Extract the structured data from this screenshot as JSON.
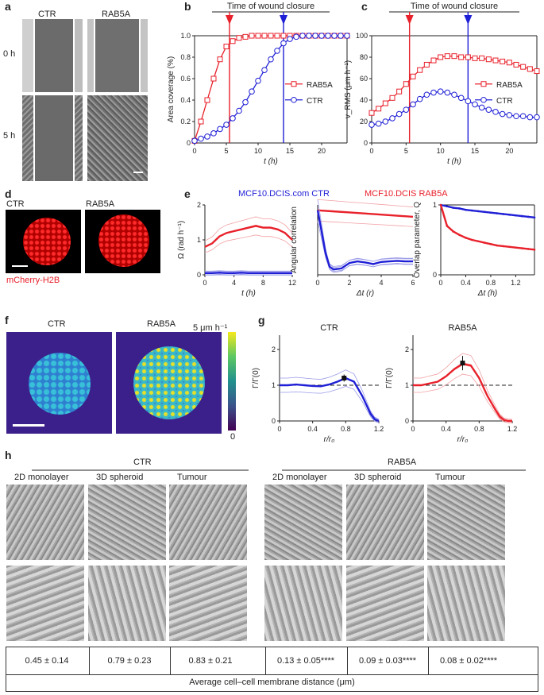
{
  "panel_letters": {
    "a": "a",
    "b": "b",
    "c": "c",
    "d": "d",
    "e": "e",
    "f": "f",
    "g": "g",
    "h": "h"
  },
  "panel_a": {
    "col1": "CTR",
    "col2": "RAB5A",
    "row1": "0 h",
    "row2": "5 h"
  },
  "panel_d": {
    "col1": "CTR",
    "col2": "RAB5A",
    "caption": "mCherry-H2B"
  },
  "panel_e": {
    "legend_ctr": "MCF10.DCIS.com CTR",
    "legend_rab5a": "MCF10.DCIS RAB5A"
  },
  "panel_f": {
    "col1": "CTR",
    "col2": "RAB5A",
    "scale_top": "5 μm h⁻¹",
    "scale_bottom": "0"
  },
  "panel_h": {
    "group1": "CTR",
    "group2": "RAB5A",
    "subtitles": [
      "2D monolayer",
      "3D spheroid",
      "Tumour",
      "2D monolayer",
      "3D spheroid",
      "Tumour"
    ],
    "values": [
      "0.45 ± 0.14",
      "0.79 ± 0.23",
      "0.83 ± 0.21",
      "0.13 ± 0.05****",
      "0.09 ± 0.03****",
      "0.08 ± 0.02****"
    ],
    "footer": "Average cell–cell membrane distance (μm)"
  },
  "colors": {
    "ctr": "#1f1fd6",
    "rab5a": "#e8212b",
    "ctr_light": "#9a9ae8",
    "rab5a_light": "#f2a0a4"
  },
  "chart_data": [
    {
      "id": "b",
      "type": "line",
      "title": "",
      "annotation": "Time of wound closure",
      "xlabel": "t (h)",
      "ylabel": "Area coverage (%)",
      "xlim": [
        0,
        24
      ],
      "ylim": [
        0,
        1
      ],
      "xticks": [
        0,
        5,
        10,
        15,
        20
      ],
      "yticks": [
        0,
        0.2,
        0.4,
        0.6,
        0.8,
        1.0
      ],
      "xtick_labels": [
        "0",
        "5",
        "10",
        "15",
        "20"
      ],
      "ytick_labels": [
        "0",
        "0.2",
        "0.4",
        "0.6",
        "0.8",
        "1.0"
      ],
      "vlines": [
        {
          "x": 5.5,
          "color": "rab5a"
        },
        {
          "x": 14,
          "color": "ctr"
        }
      ],
      "legend": "right",
      "series": [
        {
          "name": "RAB5A",
          "marker": "square",
          "color": "rab5a",
          "x": [
            0,
            1,
            2,
            3,
            4,
            5,
            6,
            7,
            8,
            9,
            10,
            11,
            12,
            13,
            14,
            15,
            16,
            17,
            18,
            19,
            20,
            21,
            22,
            23,
            24
          ],
          "y": [
            0.02,
            0.2,
            0.4,
            0.6,
            0.78,
            0.9,
            0.95,
            0.98,
            0.99,
            1,
            1,
            1,
            1,
            1,
            1,
            1,
            1,
            1,
            1,
            1,
            1,
            1,
            1,
            1,
            1
          ]
        },
        {
          "name": "CTR",
          "marker": "circle",
          "color": "ctr",
          "x": [
            0,
            1,
            2,
            3,
            4,
            5,
            6,
            7,
            8,
            9,
            10,
            11,
            12,
            13,
            14,
            15,
            16,
            17,
            18,
            19,
            20,
            21,
            22,
            23,
            24
          ],
          "y": [
            0.02,
            0.04,
            0.06,
            0.09,
            0.13,
            0.17,
            0.23,
            0.3,
            0.38,
            0.48,
            0.58,
            0.68,
            0.78,
            0.86,
            0.93,
            0.97,
            0.99,
            1,
            1,
            1,
            1,
            1,
            1,
            1,
            1
          ]
        }
      ]
    },
    {
      "id": "c",
      "type": "line",
      "title": "",
      "annotation": "Time of wound closure",
      "xlabel": "t (h)",
      "ylabel": "v_RMS (μm h⁻¹)",
      "xlim": [
        0,
        24
      ],
      "ylim": [
        0,
        100
      ],
      "xticks": [
        0,
        5,
        10,
        15,
        20
      ],
      "yticks": [
        0,
        20,
        40,
        60,
        80,
        100
      ],
      "xtick_labels": [
        "0",
        "5",
        "10",
        "15",
        "20"
      ],
      "ytick_labels": [
        "0",
        "20",
        "40",
        "60",
        "80",
        "100"
      ],
      "vlines": [
        {
          "x": 5.5,
          "color": "rab5a"
        },
        {
          "x": 14,
          "color": "ctr"
        }
      ],
      "legend": "right",
      "series": [
        {
          "name": "RAB5A",
          "marker": "square",
          "color": "rab5a",
          "x": [
            0,
            1,
            2,
            3,
            4,
            5,
            6,
            7,
            8,
            9,
            10,
            11,
            12,
            13,
            14,
            15,
            16,
            17,
            18,
            19,
            20,
            21,
            22,
            23,
            24
          ],
          "y": [
            28,
            32,
            37,
            42,
            48,
            55,
            62,
            68,
            73,
            77,
            80,
            81,
            81,
            80,
            80,
            79,
            79,
            78,
            77,
            76,
            75,
            73,
            71,
            69,
            67
          ]
        },
        {
          "name": "CTR",
          "marker": "circle",
          "color": "ctr",
          "x": [
            0,
            1,
            2,
            3,
            4,
            5,
            6,
            7,
            8,
            9,
            10,
            11,
            12,
            13,
            14,
            15,
            16,
            17,
            18,
            19,
            20,
            21,
            22,
            23,
            24
          ],
          "y": [
            17,
            18,
            20,
            23,
            27,
            31,
            36,
            41,
            45,
            47,
            48,
            47,
            45,
            42,
            39,
            36,
            33,
            31,
            29,
            27,
            26,
            25,
            25,
            24,
            24
          ]
        }
      ]
    },
    {
      "id": "e1",
      "type": "line",
      "title": "",
      "xlabel": "t (h)",
      "ylabel": "Ω (rad h⁻¹)",
      "xlim": [
        0,
        12
      ],
      "ylim": [
        0,
        2
      ],
      "xticks": [
        0,
        4,
        8,
        12
      ],
      "yticks": [
        0,
        1,
        2
      ],
      "xtick_labels": [
        "0",
        "4",
        "8",
        "12"
      ],
      "ytick_labels": [
        "0",
        "1",
        "2"
      ],
      "series": [
        {
          "name": "RAB5A",
          "color": "rab5a",
          "x": [
            0,
            1,
            2,
            3,
            4,
            5,
            6,
            7,
            8,
            9,
            10,
            11,
            12
          ],
          "y": [
            0.8,
            0.9,
            1.1,
            1.2,
            1.25,
            1.3,
            1.35,
            1.4,
            1.35,
            1.35,
            1.3,
            1.2,
            1.0
          ]
        },
        {
          "name": "CTR",
          "color": "ctr",
          "x": [
            0,
            1,
            2,
            3,
            4,
            5,
            6,
            7,
            8,
            9,
            10,
            11,
            12
          ],
          "y": [
            0.05,
            0.05,
            0.06,
            0.05,
            0.05,
            0.06,
            0.05,
            0.05,
            0.05,
            0.05,
            0.05,
            0.05,
            0.05
          ]
        }
      ]
    },
    {
      "id": "e2",
      "type": "line",
      "title": "",
      "xlabel": "Δt (r)",
      "ylabel": "Angular correlation",
      "xlim": [
        0,
        6
      ],
      "ylim": [
        -0.2,
        1.1
      ],
      "xticks": [
        0,
        2,
        4,
        6
      ],
      "yticks": [],
      "xtick_labels": [
        "0",
        "2",
        "4",
        "6"
      ],
      "ytick_labels": [],
      "series": [
        {
          "name": "RAB5A",
          "color": "rab5a",
          "x": [
            0,
            1,
            2,
            3,
            4,
            5,
            6
          ],
          "y": [
            1.0,
            0.98,
            0.96,
            0.94,
            0.92,
            0.9,
            0.88
          ]
        },
        {
          "name": "CTR",
          "color": "ctr",
          "x": [
            0,
            0.25,
            0.5,
            0.75,
            1,
            1.5,
            2,
            2.5,
            3,
            3.5,
            4,
            4.5,
            5,
            5.5,
            6
          ],
          "y": [
            1.0,
            0.6,
            0.2,
            -0.05,
            -0.1,
            -0.08,
            0.02,
            0.05,
            0.03,
            0.0,
            0.04,
            0.05,
            0.06,
            0.05,
            0.05
          ]
        }
      ]
    },
    {
      "id": "e3",
      "type": "line",
      "title": "",
      "xlabel": "Δt (h)",
      "ylabel": "Overlap parameter, Q",
      "xlim": [
        0,
        1.5
      ],
      "ylim": [
        0,
        1
      ],
      "xticks": [
        0,
        0.4,
        0.8,
        1.2
      ],
      "yticks": [
        0,
        1
      ],
      "xtick_labels": [
        "0",
        "0.4",
        "0.8",
        "1.2"
      ],
      "ytick_labels": [
        "0",
        "1"
      ],
      "series": [
        {
          "name": "CTR",
          "color": "ctr",
          "marker": "dot",
          "x": [
            0,
            0.1,
            0.2,
            0.3,
            0.4,
            0.5,
            0.6,
            0.7,
            0.8,
            0.9,
            1.0,
            1.1,
            1.2,
            1.3,
            1.4,
            1.5
          ],
          "y": [
            1,
            0.98,
            0.96,
            0.95,
            0.93,
            0.92,
            0.91,
            0.9,
            0.89,
            0.88,
            0.87,
            0.86,
            0.85,
            0.84,
            0.83,
            0.82
          ]
        },
        {
          "name": "RAB5A",
          "color": "rab5a",
          "marker": "dot",
          "x": [
            0,
            0.1,
            0.2,
            0.3,
            0.4,
            0.5,
            0.6,
            0.7,
            0.8,
            0.9,
            1.0,
            1.1,
            1.2,
            1.3,
            1.4,
            1.5
          ],
          "y": [
            1,
            0.7,
            0.62,
            0.57,
            0.53,
            0.5,
            0.48,
            0.46,
            0.44,
            0.42,
            0.41,
            0.4,
            0.39,
            0.38,
            0.37,
            0.36
          ]
        }
      ]
    },
    {
      "id": "g1",
      "type": "line",
      "title": "CTR",
      "xlabel": "r/r₀",
      "ylabel": "Γ/Γ(0)",
      "xlim": [
        0,
        1.2
      ],
      "ylim": [
        0,
        2.4
      ],
      "xticks": [
        0,
        0.4,
        0.8,
        1.2
      ],
      "yticks": [
        0,
        1,
        2
      ],
      "xtick_labels": [
        "0",
        "0.4",
        "0.8",
        "1.2"
      ],
      "ytick_labels": [
        "0",
        "1",
        "2"
      ],
      "reference_line": 1,
      "errorbar": {
        "x": 0.78,
        "y": 1.2,
        "err": 0.1
      },
      "series": [
        {
          "name": "CTR",
          "color": "ctr",
          "x": [
            0,
            0.1,
            0.2,
            0.3,
            0.4,
            0.5,
            0.6,
            0.7,
            0.8,
            0.9,
            1.0,
            1.05,
            1.1,
            1.15,
            1.2
          ],
          "y": [
            1,
            1,
            1.02,
            1.0,
            0.98,
            0.97,
            1.02,
            1.1,
            1.2,
            1.1,
            0.7,
            0.45,
            0.2,
            0.05,
            0
          ]
        }
      ]
    },
    {
      "id": "g2",
      "type": "line",
      "title": "RAB5A",
      "xlabel": "r/r₀",
      "ylabel": "Γ/Γ(0)",
      "xlim": [
        0,
        1.2
      ],
      "ylim": [
        0,
        2.4
      ],
      "xticks": [
        0,
        0.4,
        0.8,
        1.2
      ],
      "yticks": [
        0,
        1,
        2
      ],
      "xtick_labels": [
        "0",
        "0.4",
        "0.8",
        "1.2"
      ],
      "ytick_labels": [
        "0",
        "1",
        "2"
      ],
      "reference_line": 1,
      "errorbar": {
        "x": 0.6,
        "y": 1.62,
        "err": 0.2
      },
      "series": [
        {
          "name": "RAB5A",
          "color": "rab5a",
          "x": [
            0,
            0.1,
            0.2,
            0.3,
            0.4,
            0.5,
            0.6,
            0.7,
            0.8,
            0.9,
            1.0,
            1.05,
            1.1,
            1.15,
            1.2
          ],
          "y": [
            1,
            1.0,
            1.05,
            1.1,
            1.25,
            1.45,
            1.6,
            1.55,
            1.2,
            0.7,
            0.3,
            0.12,
            0.03,
            0,
            0
          ]
        }
      ]
    }
  ]
}
